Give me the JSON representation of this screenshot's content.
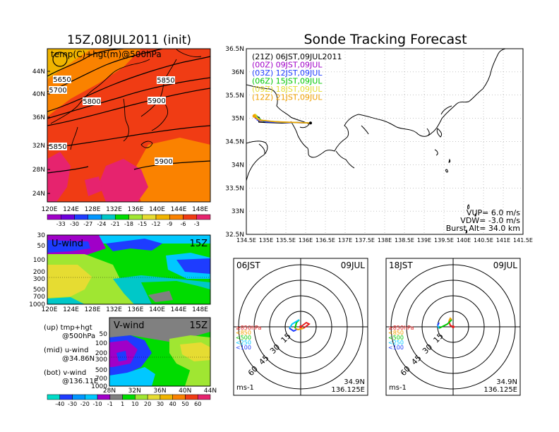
{
  "main_title": "Sonde Tracking Forecast",
  "map500": {
    "title": "15Z,08JUL2011 (init)",
    "label": "temp(C)+hgt(m)@500hPa",
    "contour_labels": [
      "5650",
      "5700",
      "5800",
      "5850",
      "5900",
      "5850",
      "5900"
    ],
    "lat_ticks": [
      "44N",
      "40N",
      "36N",
      "32N",
      "28N",
      "24N"
    ],
    "lon_ticks": [
      "120E",
      "124E",
      "128E",
      "132E",
      "136E",
      "140E",
      "144E",
      "148E"
    ],
    "colorbar": [
      "-33",
      "-30",
      "-27",
      "-24",
      "-21",
      "-18",
      "-15",
      "-12",
      "-9",
      "-6",
      "-3"
    ],
    "colorbar_colors": [
      "#a000c8",
      "#6e00dc",
      "#1e3cff",
      "#0096ff",
      "#00c8c8",
      "#00dc00",
      "#a0e632",
      "#e6dc32",
      "#f0b400",
      "#fa8200",
      "#f03c14",
      "#e6236e"
    ]
  },
  "uwind": {
    "label": "U-wind",
    "time": "15Z",
    "p_ticks": [
      "30",
      "50",
      "100",
      "200",
      "300",
      "500",
      "700",
      "1000"
    ],
    "lon_ticks": [
      "120E",
      "124E",
      "128E",
      "132E",
      "136E",
      "140E",
      "144E",
      "148E"
    ]
  },
  "vwind": {
    "label": "V-wind",
    "time": "15Z",
    "p_ticks": [
      "50",
      "100",
      "200",
      "300",
      "500",
      "700",
      "1000"
    ],
    "lat_ticks": [
      "28N",
      "32N",
      "36N",
      "40N",
      "44N"
    ],
    "colorbar": [
      "-40",
      "-30",
      "-20",
      "-10",
      "-1",
      "1",
      "10",
      "20",
      "30",
      "40",
      "50",
      "60"
    ],
    "colorbar_colors": [
      "#00dcc8",
      "#1e3cff",
      "#0096ff",
      "#00c8ff",
      "#a000c8",
      "#808080",
      "#00dc00",
      "#a0e632",
      "#e6dc32",
      "#f0b400",
      "#fa8200",
      "#f03c14",
      "#e6236e"
    ]
  },
  "legend_notes": [
    {
      "l1": "(up) tmp+hgt",
      "l2": "@500hPa"
    },
    {
      "l1": "(mid) u-wind",
      "l2": "@34.86N"
    },
    {
      "l1": "(bot) v-wind",
      "l2": "@136.11E"
    }
  ],
  "track": {
    "runs": [
      {
        "label": "(21Z)  06JST,09JUL2011",
        "color": "#000000"
      },
      {
        "label": "(00Z)  09JST,09JUL",
        "color": "#a000c8"
      },
      {
        "label": "(03Z)  12JST,09JUL",
        "color": "#1e3cff"
      },
      {
        "label": "(06Z)  15JST,09JUL",
        "color": "#00c800"
      },
      {
        "label": "(09Z)  18JST,09JUL",
        "color": "#e6dc32"
      },
      {
        "label": "(12Z)  21JST,09JUL",
        "color": "#f0a000"
      }
    ],
    "lat_ticks": [
      "36.5N",
      "36N",
      "35.5N",
      "35N",
      "34.5N",
      "34N",
      "33.5N",
      "33N",
      "32.5N"
    ],
    "lon_ticks": [
      "134.5E",
      "135E",
      "135.5E",
      "136E",
      "136.5E",
      "137E",
      "137.5E",
      "138E",
      "138.5E",
      "139E",
      "139.5E",
      "140E",
      "140.5E",
      "141E",
      "141.5E"
    ],
    "vup": "VUP=  6.0  m/s",
    "vdw": "VDW= -3.0  m/s",
    "burst": "Burst Alt= 34.0  km"
  },
  "polar_left": {
    "time": "06JST",
    "date": "09JUL",
    "ring_labels": [
      "15",
      "30",
      "45",
      "60"
    ],
    "levels": [
      "≥850hPa",
      "<850",
      "<500",
      "<250",
      "<100"
    ],
    "unit": "ms-1",
    "lat": "34.9N",
    "lon": "136.125E"
  },
  "polar_right": {
    "time": "18JST",
    "date": "09JUL",
    "ring_labels": [
      "15",
      "30",
      "45",
      "60"
    ],
    "levels": [
      "≥850hPa",
      "<850",
      "<500",
      "<250",
      "<100"
    ],
    "unit": "ms-1",
    "lat": "34.9N",
    "lon": "136.125E"
  },
  "level_colors": [
    "#e61e1e",
    "#f0a000",
    "#00c800",
    "#00c8ff",
    "#1e3cff"
  ],
  "chart_data": [
    {
      "type": "heatmap",
      "title": "15Z,08JUL2011 (init)",
      "variable": "temp(C)+hgt(m)@500hPa",
      "xlim": [
        120,
        150
      ],
      "ylim": [
        22,
        48
      ],
      "colorbar_levels": [
        -33,
        -30,
        -27,
        -24,
        -21,
        -18,
        -15,
        -12,
        -9,
        -6,
        -3
      ],
      "height_contours": [
        5650,
        5700,
        5800,
        5850,
        5900
      ]
    },
    {
      "type": "heatmap",
      "title": "U-wind",
      "cross_section": "@34.86N",
      "xlim": [
        120,
        150
      ],
      "p_levels": [
        30,
        50,
        100,
        200,
        300,
        500,
        700,
        1000
      ]
    },
    {
      "type": "heatmap",
      "title": "V-wind",
      "cross_section": "@136.11E",
      "xlim": [
        28,
        44
      ],
      "colorbar_levels": [
        -40,
        -30,
        -20,
        -10,
        -1,
        1,
        10,
        20,
        30,
        40,
        50,
        60
      ]
    },
    {
      "type": "line",
      "title": "Sonde Tracking Forecast",
      "xlim": [
        134.5,
        141.5
      ],
      "ylim": [
        32.5,
        36.5
      ],
      "launch": {
        "lon": 136.125,
        "lat": 34.9
      },
      "series": [
        {
          "name": "(21Z)  06JST,09JUL2011",
          "points": [
            [
              136.12,
              34.9
            ],
            [
              135.8,
              34.91
            ],
            [
              135.4,
              34.9
            ],
            [
              135.0,
              34.91
            ],
            [
              134.82,
              34.92
            ],
            [
              134.8,
              35.0
            ]
          ]
        },
        {
          "name": "(00Z)  09JST,09JUL",
          "points": [
            [
              136.12,
              34.9
            ],
            [
              135.6,
              34.91
            ],
            [
              135.2,
              34.92
            ],
            [
              134.85,
              34.95
            ],
            [
              134.75,
              35.02
            ]
          ]
        },
        {
          "name": "(03Z)  12JST,09JUL",
          "points": [
            [
              136.12,
              34.9
            ],
            [
              135.5,
              34.91
            ],
            [
              135.0,
              34.92
            ],
            [
              134.8,
              34.98
            ]
          ]
        },
        {
          "name": "(06Z)  15JST,09JUL",
          "points": [
            [
              136.12,
              34.9
            ],
            [
              135.4,
              34.92
            ],
            [
              134.9,
              34.95
            ],
            [
              134.74,
              35.04
            ]
          ]
        },
        {
          "name": "(09Z)  18JST,09JUL",
          "points": [
            [
              136.12,
              34.9
            ],
            [
              135.3,
              34.92
            ],
            [
              134.85,
              34.96
            ],
            [
              134.72,
              35.06
            ]
          ]
        },
        {
          "name": "(12Z)  21JST,09JUL",
          "points": [
            [
              136.12,
              34.9
            ],
            [
              135.2,
              34.93
            ],
            [
              134.8,
              34.97
            ],
            [
              134.7,
              35.05
            ]
          ]
        }
      ]
    }
  ]
}
